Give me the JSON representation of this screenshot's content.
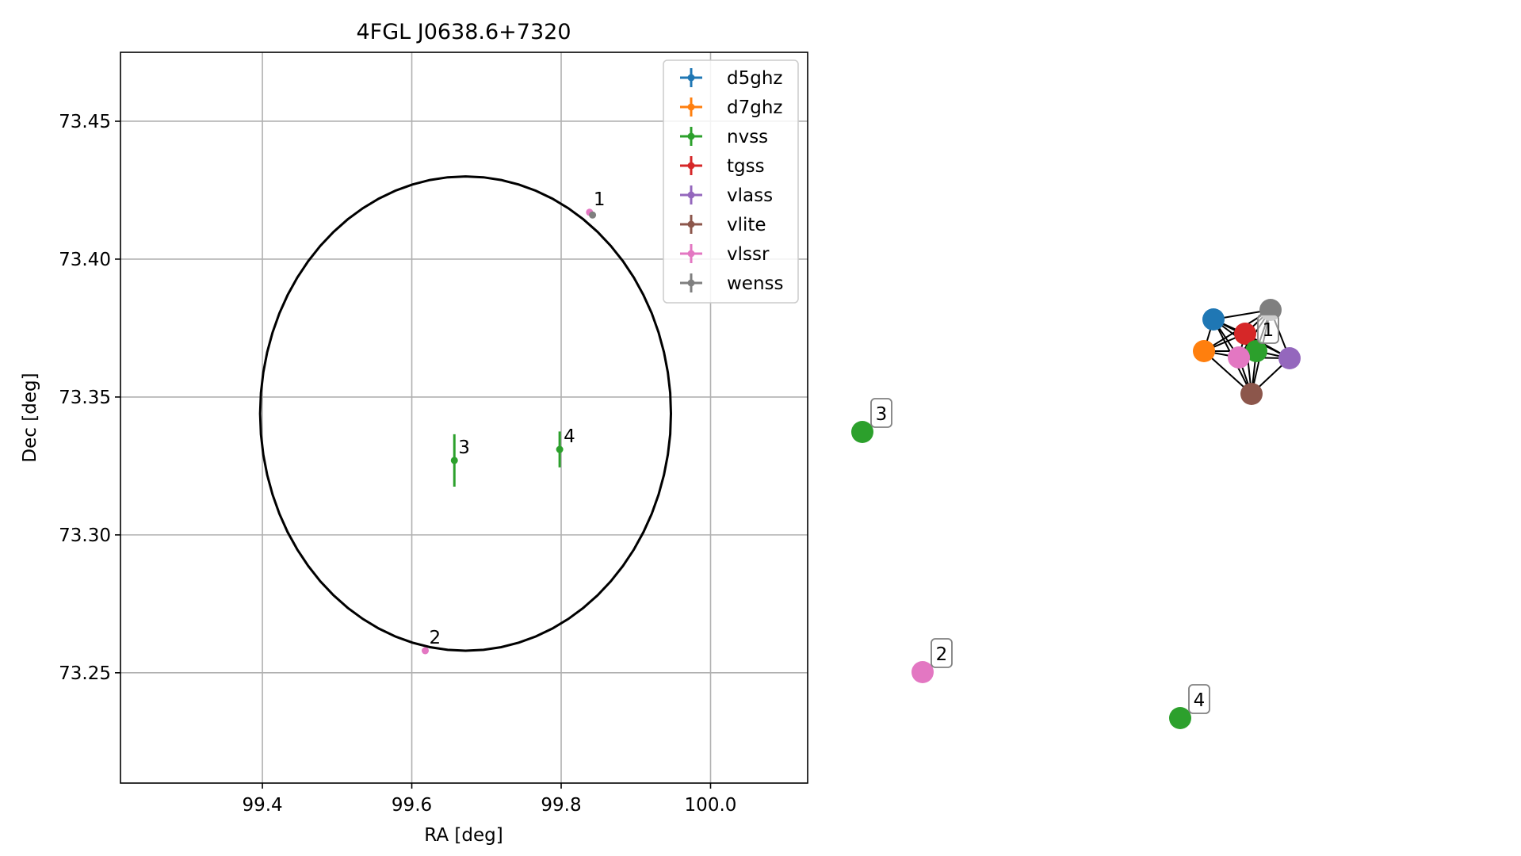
{
  "chart_data": [
    {
      "type": "scatter",
      "title": "4FGL J0638.6+7320",
      "xlabel": "RA [deg]",
      "ylabel": "Dec [deg]",
      "xlim": [
        99.21,
        100.13
      ],
      "ylim": [
        73.21,
        73.475
      ],
      "xticks": [
        99.4,
        99.6,
        99.8,
        100.0
      ],
      "xtick_labels": [
        "99.4",
        "99.6",
        "99.8",
        "100.0"
      ],
      "yticks": [
        73.25,
        73.3,
        73.35,
        73.4,
        73.45
      ],
      "ytick_labels": [
        "73.25",
        "73.30",
        "73.35",
        "73.40",
        "73.45"
      ],
      "grid": true,
      "legend_position": "top-right",
      "ellipse": {
        "center": [
          99.672,
          73.344
        ],
        "semi_axis_ra": 0.275,
        "semi_axis_dec": 0.086,
        "color": "#000000"
      },
      "series": [
        {
          "name": "d5ghz",
          "color": "#1f77b4",
          "points": []
        },
        {
          "name": "d7ghz",
          "color": "#ff7f0e",
          "points": []
        },
        {
          "name": "nvss",
          "color": "#2ca02c",
          "points": [
            {
              "x": 99.657,
              "y": 73.327,
              "yerr": 0.0095,
              "label": "3"
            },
            {
              "x": 99.798,
              "y": 73.331,
              "yerr": 0.0065,
              "label": "4"
            }
          ]
        },
        {
          "name": "tgss",
          "color": "#d62728",
          "points": []
        },
        {
          "name": "vlass",
          "color": "#9467bd",
          "points": []
        },
        {
          "name": "vlite",
          "color": "#8c564b",
          "points": []
        },
        {
          "name": "vlssr",
          "color": "#e377c2",
          "points": [
            {
              "x": 99.838,
              "y": 73.417,
              "yerr": 0,
              "label": "1"
            },
            {
              "x": 99.618,
              "y": 73.258,
              "yerr": 0,
              "label": "2"
            }
          ]
        },
        {
          "name": "wenss",
          "color": "#7f7f7f",
          "points": [
            {
              "x": 99.842,
              "y": 73.416,
              "yerr": 0
            }
          ]
        }
      ]
    },
    {
      "type": "network",
      "nodes": [
        {
          "id": "d5ghz",
          "color": "#1f77b4"
        },
        {
          "id": "d7ghz",
          "color": "#ff7f0e"
        },
        {
          "id": "tgss",
          "color": "#d62728"
        },
        {
          "id": "wenss",
          "color": "#7f7f7f"
        },
        {
          "id": "nvss-1",
          "color": "#2ca02c"
        },
        {
          "id": "vlssr-1",
          "color": "#e377c2"
        },
        {
          "id": "vlass",
          "color": "#9467bd"
        },
        {
          "id": "vlite",
          "color": "#8c564b"
        },
        {
          "id": "nvss-3",
          "color": "#2ca02c",
          "label": "3"
        },
        {
          "id": "vlssr-2",
          "color": "#e377c2",
          "label": "2"
        },
        {
          "id": "nvss-4",
          "color": "#2ca02c",
          "label": "4"
        }
      ],
      "cluster_label": "1"
    }
  ]
}
